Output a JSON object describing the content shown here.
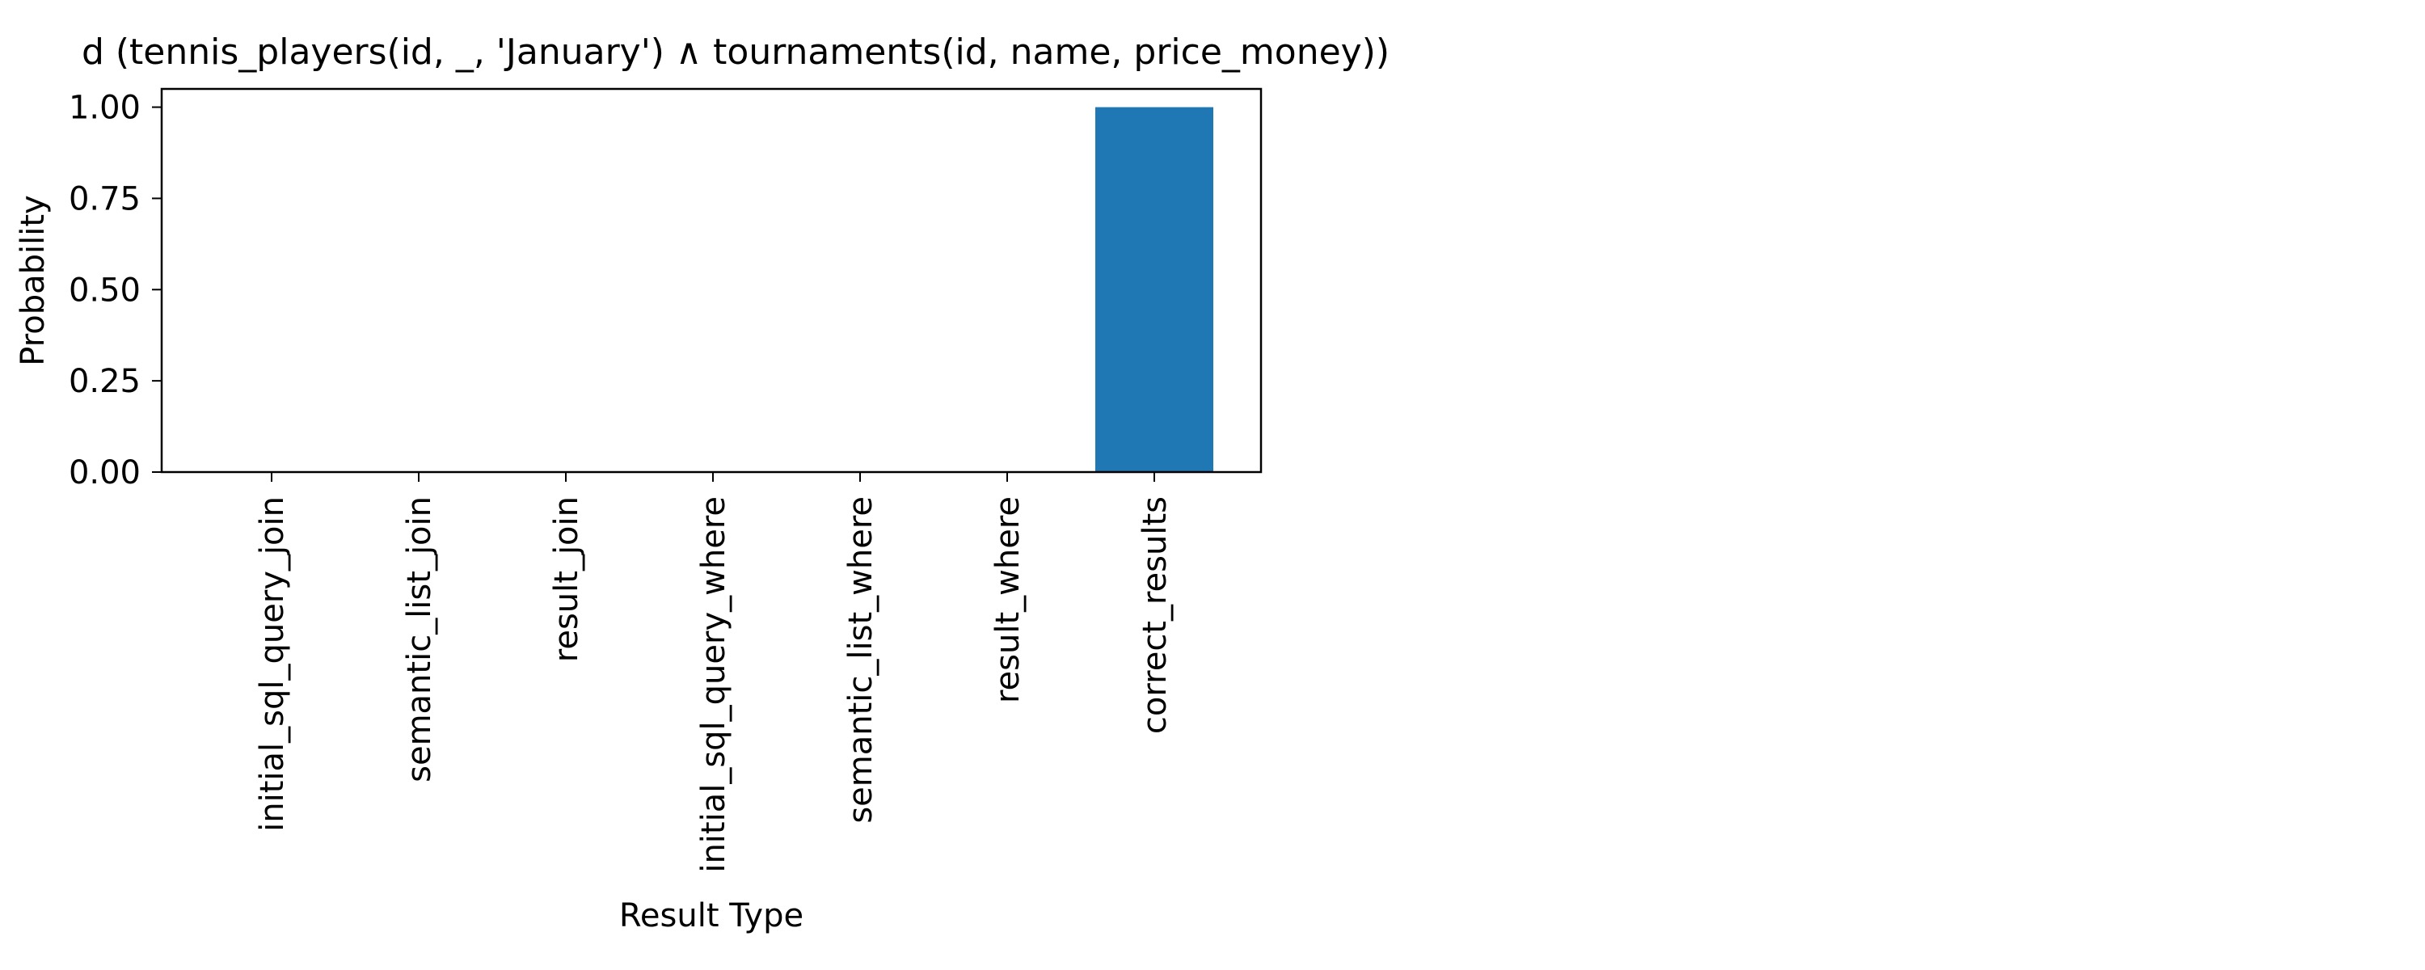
{
  "chart_data": {
    "type": "bar",
    "title": "d (tennis_players(id, _, 'January') ∧ tournaments(id, name, price_money))",
    "xlabel": "Result Type",
    "ylabel": "Probability",
    "categories": [
      "initial_sql_query_join",
      "semantic_list_join",
      "result_join",
      "initial_sql_query_where",
      "semantic_list_where",
      "result_where",
      "correct_results"
    ],
    "values": [
      0,
      0,
      0,
      0,
      0,
      0,
      1.0
    ],
    "ylim": [
      0,
      1.05
    ],
    "yticks": [
      "0.00",
      "0.25",
      "0.50",
      "0.75",
      "1.00"
    ],
    "grid": false,
    "bar_color": "#1f77b4"
  }
}
